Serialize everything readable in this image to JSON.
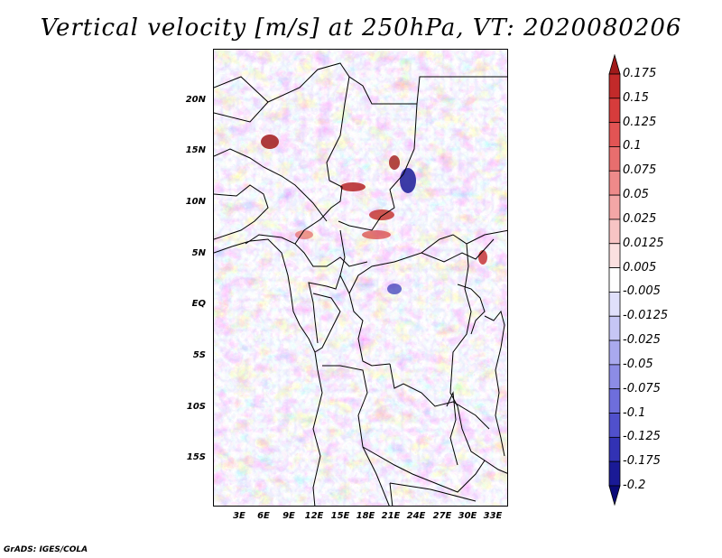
{
  "title": "Vertical velocity [m/s] at 250hPa, VT: 2020080206",
  "credit": "GrADS: IGES/COLA",
  "lat_labels": [
    "20N",
    "15N",
    "10N",
    "5N",
    "EQ",
    "5S",
    "10S",
    "15S"
  ],
  "lon_labels": [
    "3E",
    "6E",
    "9E",
    "12E",
    "15E",
    "18E",
    "21E",
    "24E",
    "27E",
    "30E",
    "33E"
  ],
  "colorbar": {
    "levels": [
      "0.175",
      "0.15",
      "0.125",
      "0.1",
      "0.075",
      "0.05",
      "0.025",
      "0.0125",
      "0.005",
      "-0.005",
      "-0.0125",
      "-0.025",
      "-0.05",
      "-0.075",
      "-0.1",
      "-0.125",
      "-0.175",
      "-0.2"
    ],
    "colors": [
      "#a01a1a",
      "#c22a2a",
      "#d63c3c",
      "#e25454",
      "#e86e6e",
      "#ee8a8a",
      "#f3a6a6",
      "#f7c4c4",
      "#fbe0e0",
      "#ffffff",
      "#e0e0fb",
      "#c6c6f5",
      "#a9a9ee",
      "#8c8ce6",
      "#6e6edc",
      "#5050cc",
      "#3232b4",
      "#1a1a96",
      "#0a0a78"
    ]
  }
}
